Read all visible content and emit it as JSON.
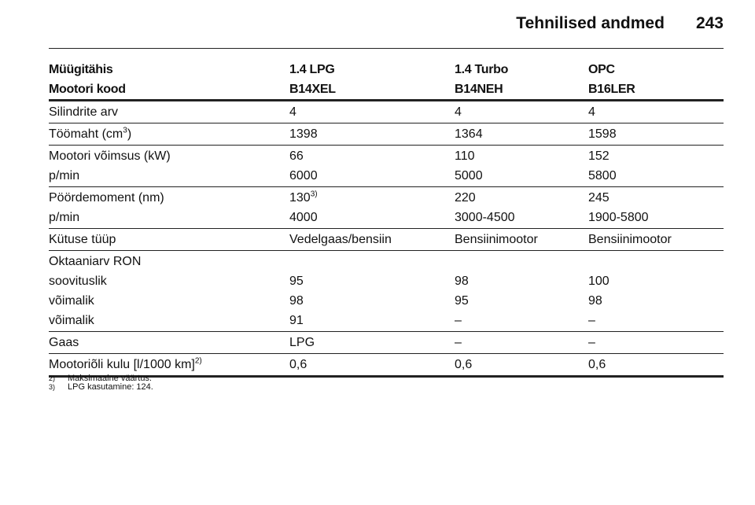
{
  "header": {
    "title": "Tehnilised andmed",
    "page": "243"
  },
  "table": {
    "head": [
      [
        "Müügitähis",
        "1.4 LPG",
        "1.4 Turbo",
        "OPC"
      ],
      [
        "Mootori kood",
        "B14XEL",
        "B14NEH",
        "B16LER"
      ]
    ],
    "groups": [
      [
        [
          "Silindrite arv",
          "4",
          "4",
          "4"
        ]
      ],
      [
        [
          {
            "text": "Töömaht (cm",
            "sup": "3",
            "after": ")"
          },
          "1398",
          "1364",
          "1598"
        ]
      ],
      [
        [
          "Mootori võimsus (kW)",
          "66",
          "110",
          "152"
        ],
        [
          "p/min",
          "6000",
          "5000",
          "5800"
        ]
      ],
      [
        [
          "Pöördemoment (nm)",
          {
            "text": "130",
            "sup": "3)"
          },
          "220",
          "245"
        ],
        [
          "p/min",
          "4000",
          "3000-4500",
          "1900-5800"
        ]
      ],
      [
        [
          "Kütuse tüüp",
          "Vedelgaas/bensiin",
          "Bensiinimootor",
          "Bensiinimootor"
        ]
      ],
      [
        [
          "Oktaaniarv RON"
        ],
        [
          "soovituslik",
          "95",
          "98",
          "100"
        ],
        [
          "võimalik",
          "98",
          "95",
          "98"
        ],
        [
          "võimalik",
          "91",
          "–",
          "–"
        ]
      ],
      [
        [
          "Gaas",
          "LPG",
          "–",
          "–"
        ]
      ],
      [
        [
          {
            "text": "Mootoriõli kulu [l/1000 km]",
            "sup": "2)"
          },
          "0,6",
          "0,6",
          "0,6"
        ]
      ]
    ]
  },
  "footnotes": [
    {
      "mark": "2)",
      "text": "Maksimaalne väärtus."
    },
    {
      "mark": "3)",
      "text": "LPG kasutamine: 124."
    }
  ]
}
